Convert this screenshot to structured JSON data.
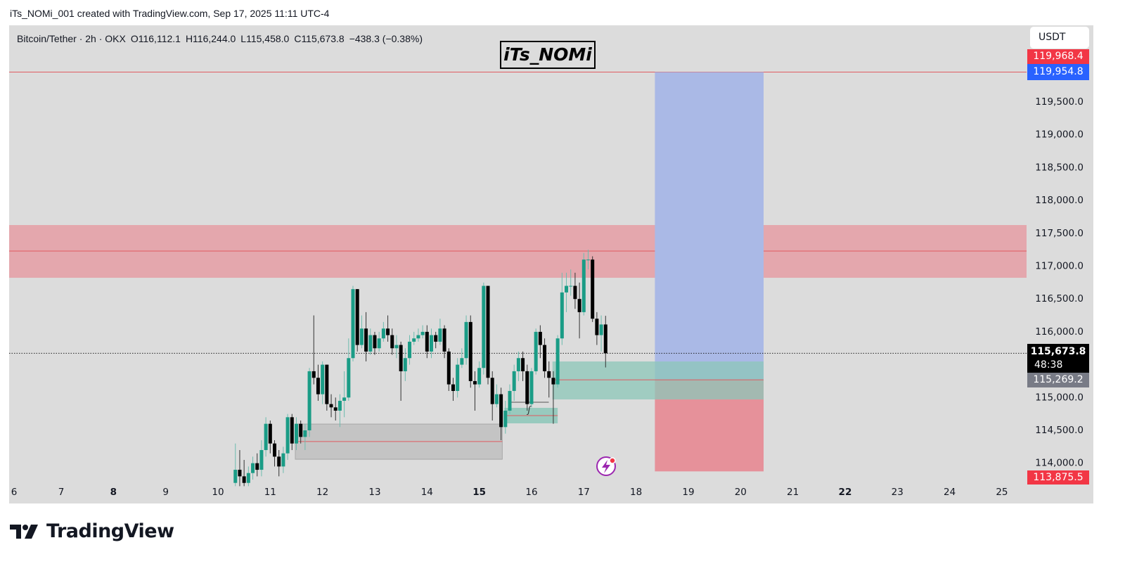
{
  "caption": "iTs_NOMi_001 created with TradingView.com, Sep 17, 2025 11:11 UTC-4",
  "legend": {
    "symbol": "Bitcoin/Tether · 2h · OKX",
    "open": "O116,112.1",
    "high": "H116,244.0",
    "low": "L115,458.0",
    "close": "C115,673.8",
    "change": "−438.3 (−0.38%)"
  },
  "watermark": "iTs_NOMi",
  "currency": "USDT",
  "footer": {
    "brand": "TradingView"
  },
  "colors": {
    "up": "#1a9c86",
    "down": "#000000",
    "background": "#dcdcdc",
    "resistance_zone": "#e4a7ad",
    "target_zone": "#aab9e6",
    "stop_zone": "#e6919a",
    "demand_zone": "#8cc7b8",
    "gray_zone": "#c4c4c4",
    "level_line": "#e05a60"
  },
  "price_labels": {
    "top_hidden": "119,968.4",
    "target": "119,954.8",
    "last_price": "115,673.8",
    "countdown": "48:38",
    "entry": "115,269.2",
    "stop": "113,875.5"
  },
  "chart_data": {
    "type": "candlestick",
    "title": "",
    "interval": "2h",
    "first_candle": "Sep 10 08:00",
    "x_ticks": [
      {
        "label": "6",
        "day": 6,
        "bold": false
      },
      {
        "label": "7",
        "day": 7,
        "bold": false
      },
      {
        "label": "8",
        "day": 8,
        "bold": true
      },
      {
        "label": "9",
        "day": 9,
        "bold": false
      },
      {
        "label": "10",
        "day": 10,
        "bold": false
      },
      {
        "label": "11",
        "day": 11,
        "bold": false
      },
      {
        "label": "12",
        "day": 12,
        "bold": false
      },
      {
        "label": "13",
        "day": 13,
        "bold": false
      },
      {
        "label": "14",
        "day": 14,
        "bold": false
      },
      {
        "label": "15",
        "day": 15,
        "bold": true
      },
      {
        "label": "16",
        "day": 16,
        "bold": false
      },
      {
        "label": "17",
        "day": 17,
        "bold": false
      },
      {
        "label": "18",
        "day": 18,
        "bold": false
      },
      {
        "label": "19",
        "day": 19,
        "bold": false
      },
      {
        "label": "20",
        "day": 20,
        "bold": false
      },
      {
        "label": "21",
        "day": 21,
        "bold": false
      },
      {
        "label": "22",
        "day": 22,
        "bold": true
      },
      {
        "label": "23",
        "day": 23,
        "bold": false
      },
      {
        "label": "24",
        "day": 24,
        "bold": false
      },
      {
        "label": "25",
        "day": 25,
        "bold": false
      }
    ],
    "y_ticks": [
      "114,000.0",
      "114,500.0",
      "115,000.0",
      "115,500.0",
      "116,000.0",
      "116,500.0",
      "117,000.0",
      "117,500.0",
      "118,000.0",
      "118,500.0",
      "119,000.0",
      "119,500.0"
    ],
    "y_tick_values": [
      114000,
      114500,
      115000,
      115500,
      116000,
      116500,
      117000,
      117500,
      118000,
      118500,
      119000,
      119500
    ],
    "ylim": [
      113700,
      120100
    ],
    "grid": false,
    "close": [
      113900,
      113800,
      113700,
      113850,
      114000,
      113900,
      114200,
      114600,
      114300,
      114100,
      113950,
      114150,
      114700,
      114300,
      114600,
      114400,
      114500,
      115400,
      115300,
      115050,
      115500,
      114900,
      114850,
      114800,
      114950,
      115000,
      115600,
      116650,
      115800,
      116050,
      115700,
      115950,
      115750,
      115900,
      116050,
      115950,
      115750,
      115800,
      115400,
      115600,
      115850,
      115900,
      115950,
      116000,
      115700,
      115950,
      115850,
      116050,
      115700,
      115200,
      115100,
      115500,
      115600,
      116150,
      115250,
      115200,
      115450,
      116700,
      115300,
      114900,
      115050,
      114550,
      114800,
      115100,
      115400,
      115600,
      115400,
      114900,
      115400,
      116000,
      115800,
      115400,
      115300,
      115200,
      115900,
      116600,
      116700,
      116700,
      116500,
      116300,
      117100,
      117100,
      116200,
      115950,
      116112.1,
      115673.8
    ],
    "open": [
      113700,
      113900,
      113800,
      113700,
      113850,
      114000,
      113900,
      114200,
      114600,
      114300,
      114100,
      113950,
      114150,
      114700,
      114300,
      114600,
      114400,
      114500,
      115400,
      115300,
      115050,
      115500,
      114900,
      114850,
      114800,
      114950,
      115000,
      115600,
      116650,
      115800,
      116050,
      115700,
      115950,
      115750,
      115900,
      116050,
      115950,
      115750,
      115800,
      115400,
      115600,
      115850,
      115900,
      115950,
      116000,
      115700,
      115950,
      115850,
      116050,
      115700,
      115200,
      115100,
      115500,
      115600,
      116150,
      115250,
      115200,
      115450,
      116700,
      115300,
      114900,
      115050,
      114550,
      114800,
      115100,
      115400,
      115600,
      115400,
      114900,
      115400,
      116000,
      115800,
      115400,
      115300,
      115200,
      115900,
      116600,
      116700,
      116700,
      116500,
      116300,
      117100,
      117100,
      116200,
      115950,
      116112.1
    ],
    "high": [
      114300,
      114200,
      114050,
      113950,
      114100,
      114150,
      114350,
      114700,
      114650,
      114350,
      114200,
      114250,
      114750,
      114750,
      114700,
      114650,
      114600,
      115450,
      116250,
      115500,
      115550,
      115500,
      115050,
      115000,
      115050,
      115400,
      115900,
      116700,
      116650,
      116250,
      116300,
      116050,
      116000,
      116000,
      116150,
      116250,
      116050,
      115950,
      115850,
      115750,
      115950,
      116000,
      116050,
      116100,
      116100,
      116050,
      116000,
      116200,
      116100,
      115750,
      115300,
      115600,
      115750,
      116250,
      116250,
      115400,
      115550,
      116750,
      116700,
      115400,
      115200,
      115150,
      114950,
      115200,
      115500,
      115700,
      115700,
      115500,
      115450,
      116050,
      116100,
      115900,
      115550,
      115400,
      115950,
      116900,
      116900,
      116950,
      116900,
      116750,
      117200,
      117250,
      117150,
      116300,
      116250,
      116244
    ],
    "low": [
      113650,
      113650,
      113650,
      113650,
      113750,
      113800,
      113800,
      114100,
      114150,
      113950,
      113800,
      113850,
      114050,
      114200,
      114200,
      114300,
      114200,
      114400,
      115200,
      114950,
      114900,
      114800,
      114700,
      114650,
      114550,
      114700,
      114950,
      115550,
      115700,
      115750,
      115550,
      115650,
      115650,
      115700,
      115850,
      115850,
      115650,
      115600,
      114950,
      115250,
      115500,
      115800,
      115850,
      115900,
      115600,
      115600,
      115750,
      115800,
      115600,
      115100,
      114950,
      115000,
      115450,
      115500,
      115150,
      114800,
      115150,
      115350,
      115200,
      114650,
      114850,
      114350,
      114450,
      114750,
      114950,
      115250,
      115250,
      114800,
      114850,
      115350,
      115600,
      115300,
      115000,
      114600,
      115150,
      115800,
      116300,
      116550,
      116350,
      115900,
      116250,
      116950,
      116150,
      115800,
      115700,
      115458
    ],
    "last_price": 115673.8,
    "annotations": {
      "resistance_zone": {
        "from_day": 6,
        "to_day": 25.45,
        "top": 117626,
        "bottom": 116823,
        "mid_line": 117230
      },
      "target_line": {
        "price": 119954.8
      },
      "long_position": {
        "from_day": 18.36,
        "to_day": 20.44,
        "entry": 115269.2,
        "target": 119954.8,
        "stop": 113875.5
      },
      "demand_zone": {
        "from_day": 16.4,
        "to_day": 20.44,
        "top": 115549,
        "bottom": 114971,
        "mid_line": 115269.2
      },
      "gray_zone": {
        "from_day": 11.48,
        "to_day": 15.44,
        "top": 114596,
        "bottom": 114060,
        "mid_line": 114330
      },
      "small_zone": {
        "from_day": 15.48,
        "to_day": 16.5,
        "top": 114843,
        "bottom": 114607,
        "mid_line": 114725
      },
      "bracket": {
        "from_day": 15.58,
        "to_day": 16.33,
        "price": 114928,
        "label": "ʃ"
      }
    }
  }
}
